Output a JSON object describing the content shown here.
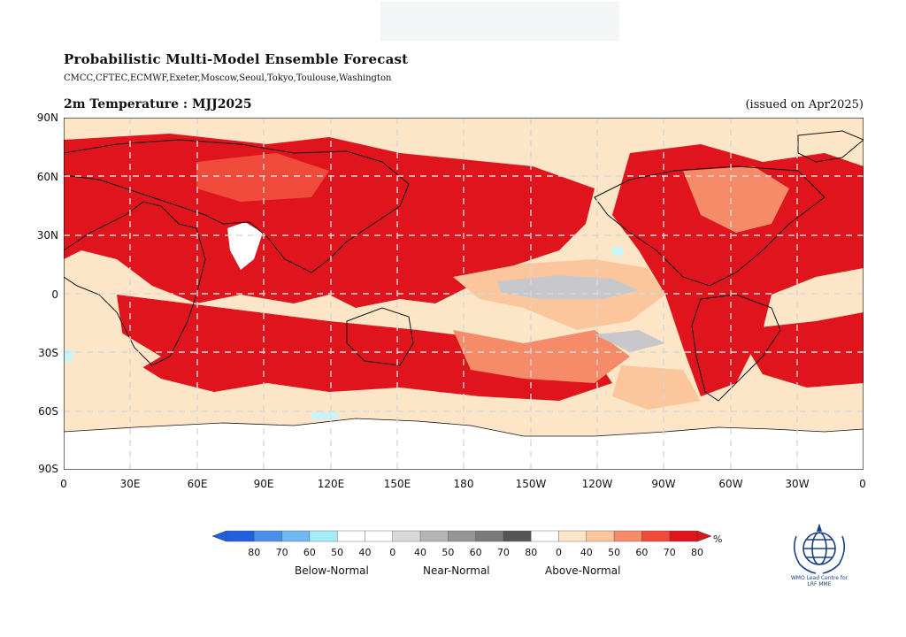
{
  "header": {
    "title": "Probabilistic Multi-Model Ensemble Forecast",
    "subtitle": "CMCC,CFTEC,ECMWF,Exeter,Moscow,Seoul,Tokyo,Toulouse,Washington",
    "variable": "2m Temperature : MJJ2025",
    "issued": "(issued on Apr2025)"
  },
  "map": {
    "lat_labels": [
      "90N",
      "60N",
      "30N",
      "0",
      "30S",
      "60S",
      "90S"
    ],
    "lon_labels": [
      "0",
      "30E",
      "60E",
      "90E",
      "120E",
      "150E",
      "180",
      "150W",
      "120W",
      "90W",
      "60W",
      "30W",
      "0"
    ],
    "colors": {
      "above_80": "#e0141c",
      "above_70": "#f04a3a",
      "above_60": "#f58b68",
      "above_50": "#fbc69c",
      "above_40": "#fde6c8",
      "near": "#c8c8cc",
      "below_40": "#c8f4fa",
      "white": "#ffffff",
      "land_outline": "#111111"
    }
  },
  "legend": {
    "below_labels": [
      "80",
      "70",
      "60",
      "50",
      "40"
    ],
    "near_labels": [
      "0",
      "40",
      "50",
      "60",
      "70",
      "80"
    ],
    "above_labels": [
      "0",
      "40",
      "50",
      "60",
      "70",
      "80"
    ],
    "below_colors": [
      "#1f5fe0",
      "#4a90ea",
      "#6fb8f2",
      "#a6ecf6",
      "#ffffff"
    ],
    "near_colors": [
      "#ffffff",
      "#d9d9d9",
      "#b5b5b5",
      "#969696",
      "#7a7a7a",
      "#555555"
    ],
    "above_colors": [
      "#ffffff",
      "#fde6c8",
      "#fbc69c",
      "#f58b68",
      "#f04a3a",
      "#e0141c"
    ],
    "unit": "%",
    "category_below": "Below-Normal",
    "category_near": "Near-Normal",
    "category_above": "Above-Normal"
  },
  "logo": {
    "icon": "wmo-emblem-icon",
    "text_line1": "WMO Lead Centre for",
    "text_line2": "LRF MME"
  }
}
